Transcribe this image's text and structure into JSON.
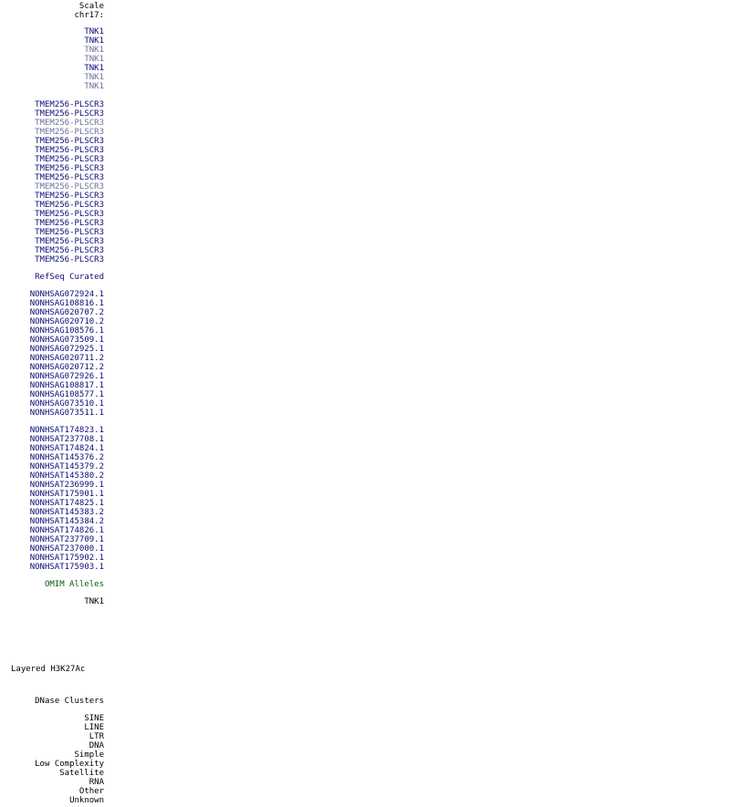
{
  "colors": {
    "black": "#000000",
    "dark_blue": "#0c0c78",
    "light_blue": "#6e6e9e",
    "green": "#0b5a0b"
  },
  "header": {
    "scale": "Scale",
    "chrom": "chr17:"
  },
  "tnk1_gencode": [
    {
      "label": "TNK1",
      "shade": "dark_blue"
    },
    {
      "label": "TNK1",
      "shade": "dark_blue"
    },
    {
      "label": "TNK1",
      "shade": "light_blue"
    },
    {
      "label": "TNK1",
      "shade": "light_blue"
    },
    {
      "label": "TNK1",
      "shade": "dark_blue"
    },
    {
      "label": "TNK1",
      "shade": "light_blue"
    },
    {
      "label": "TNK1",
      "shade": "light_blue"
    }
  ],
  "tmem_gencode": [
    {
      "label": "TMEM256-PLSCR3",
      "shade": "dark_blue"
    },
    {
      "label": "TMEM256-PLSCR3",
      "shade": "dark_blue"
    },
    {
      "label": "TMEM256-PLSCR3",
      "shade": "light_blue"
    },
    {
      "label": "TMEM256-PLSCR3",
      "shade": "light_blue"
    },
    {
      "label": "TMEM256-PLSCR3",
      "shade": "dark_blue"
    },
    {
      "label": "TMEM256-PLSCR3",
      "shade": "dark_blue"
    },
    {
      "label": "TMEM256-PLSCR3",
      "shade": "dark_blue"
    },
    {
      "label": "TMEM256-PLSCR3",
      "shade": "dark_blue"
    },
    {
      "label": "TMEM256-PLSCR3",
      "shade": "dark_blue"
    },
    {
      "label": "TMEM256-PLSCR3",
      "shade": "light_blue"
    },
    {
      "label": "TMEM256-PLSCR3",
      "shade": "dark_blue"
    },
    {
      "label": "TMEM256-PLSCR3",
      "shade": "dark_blue"
    },
    {
      "label": "TMEM256-PLSCR3",
      "shade": "dark_blue"
    },
    {
      "label": "TMEM256-PLSCR3",
      "shade": "dark_blue"
    },
    {
      "label": "TMEM256-PLSCR3",
      "shade": "dark_blue"
    },
    {
      "label": "TMEM256-PLSCR3",
      "shade": "dark_blue"
    },
    {
      "label": "TMEM256-PLSCR3",
      "shade": "dark_blue"
    },
    {
      "label": "TMEM256-PLSCR3",
      "shade": "dark_blue"
    }
  ],
  "refseq_track": "RefSeq Curated",
  "noncode_genes": [
    "NONHSAG072924.1",
    "NONHSAG108816.1",
    "NONHSAG020707.2",
    "NONHSAG020710.2",
    "NONHSAG108576.1",
    "NONHSAG073509.1",
    "NONHSAG072925.1",
    "NONHSAG020711.2",
    "NONHSAG020712.2",
    "NONHSAG072926.1",
    "NONHSAG108817.1",
    "NONHSAG108577.1",
    "NONHSAG073510.1",
    "NONHSAG073511.1"
  ],
  "noncode_transcripts": [
    "NONHSAT174823.1",
    "NONHSAT237708.1",
    "NONHSAT174824.1",
    "NONHSAT145376.2",
    "NONHSAT145379.2",
    "NONHSAT145380.2",
    "NONHSAT236999.1",
    "NONHSAT175901.1",
    "NONHSAT174825.1",
    "NONHSAT145383.2",
    "NONHSAT145384.2",
    "NONHSAT174826.1",
    "NONHSAT237709.1",
    "NONHSAT237000.1",
    "NONHSAT175902.1",
    "NONHSAT175903.1"
  ],
  "omim_track": "OMIM Alleles",
  "omim_items": [
    "TNK1"
  ],
  "h3k27ac_track": "Layered H3K27Ac",
  "dnase_track": "DNase Clusters",
  "repeat_classes": [
    "SINE",
    "LINE",
    "LTR",
    "DNA",
    "Simple",
    "Low Complexity",
    "Satellite",
    "RNA",
    "Other",
    "Unknown"
  ]
}
